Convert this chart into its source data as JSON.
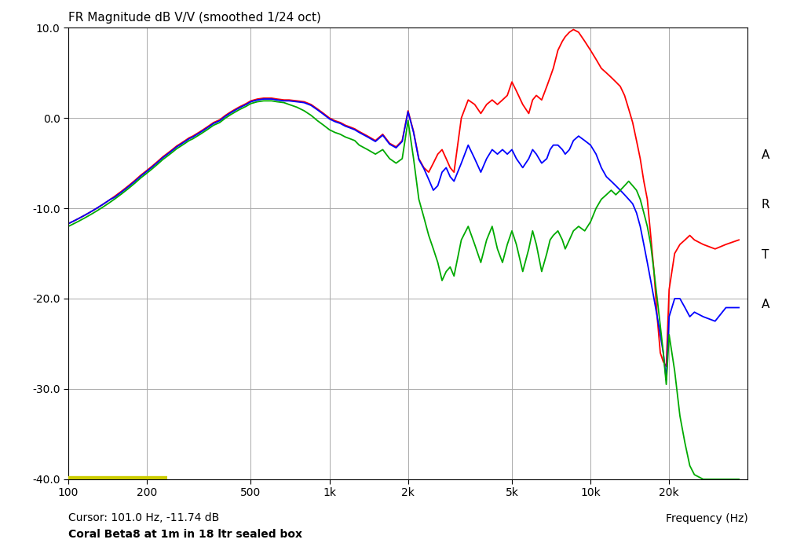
{
  "title": "FR Magnitude dB V/V (smoothed 1/24 oct)",
  "xlabel": "Frequency (Hz)",
  "xlim": [
    100,
    40000
  ],
  "ylim": [
    -40,
    10
  ],
  "yticks": [
    10.0,
    0.0,
    -10.0,
    -20.0,
    -30.0,
    -40.0
  ],
  "cursor_text": "Cursor: 101.0 Hz, -11.74 dB",
  "label_text": "Coral Beta8 at 1m in 18 ltr sealed box",
  "arta_text": "A\nR\nT\nA",
  "bg_color": "#ffffff",
  "plot_bg_color": "#ffffff",
  "grid_color": "#aaaaaa",
  "line_colors": [
    "#ff0000",
    "#0000ff",
    "#00aa00"
  ],
  "line_width": 1.3,
  "bottom_bar_color": "#cccc00",
  "freq_points": [
    100,
    105,
    110,
    115,
    120,
    125,
    130,
    135,
    140,
    145,
    150,
    160,
    170,
    180,
    190,
    200,
    210,
    220,
    230,
    240,
    250,
    260,
    270,
    280,
    290,
    300,
    320,
    340,
    360,
    380,
    400,
    420,
    450,
    480,
    500,
    530,
    560,
    600,
    630,
    670,
    700,
    750,
    800,
    850,
    900,
    950,
    1000,
    1050,
    1100,
    1150,
    1200,
    1250,
    1300,
    1400,
    1500,
    1600,
    1700,
    1800,
    1900,
    2000,
    2100,
    2200,
    2300,
    2400,
    2500,
    2600,
    2700,
    2800,
    2900,
    3000,
    3200,
    3400,
    3600,
    3800,
    4000,
    4200,
    4400,
    4600,
    4800,
    5000,
    5200,
    5500,
    5800,
    6000,
    6200,
    6500,
    6800,
    7000,
    7200,
    7500,
    7800,
    8000,
    8300,
    8600,
    9000,
    9500,
    10000,
    10500,
    11000,
    11500,
    12000,
    12500,
    13000,
    13500,
    14000,
    14500,
    15000,
    15500,
    16000,
    16500,
    17000,
    17500,
    18000,
    18500,
    19000,
    19500,
    20000,
    21000,
    22000,
    23000,
    24000,
    25000,
    27000,
    30000,
    33000,
    37000
  ],
  "red_line": [
    -11.7,
    -11.4,
    -11.1,
    -10.8,
    -10.5,
    -10.2,
    -9.9,
    -9.6,
    -9.3,
    -9.0,
    -8.7,
    -8.1,
    -7.5,
    -6.9,
    -6.3,
    -5.8,
    -5.3,
    -4.8,
    -4.3,
    -3.9,
    -3.5,
    -3.1,
    -2.8,
    -2.5,
    -2.2,
    -2.0,
    -1.5,
    -1.0,
    -0.5,
    -0.2,
    0.3,
    0.7,
    1.2,
    1.6,
    1.9,
    2.1,
    2.2,
    2.2,
    2.1,
    2.0,
    2.0,
    1.9,
    1.8,
    1.5,
    1.0,
    0.5,
    0.0,
    -0.3,
    -0.5,
    -0.8,
    -1.0,
    -1.2,
    -1.5,
    -2.0,
    -2.5,
    -1.8,
    -2.8,
    -3.2,
    -2.5,
    0.8,
    -1.5,
    -4.5,
    -5.5,
    -6.0,
    -5.0,
    -4.0,
    -3.5,
    -4.5,
    -5.5,
    -6.0,
    0.0,
    2.0,
    1.5,
    0.5,
    1.5,
    2.0,
    1.5,
    2.0,
    2.5,
    4.0,
    3.0,
    1.5,
    0.5,
    2.0,
    2.5,
    2.0,
    3.5,
    4.5,
    5.5,
    7.5,
    8.5,
    9.0,
    9.5,
    9.8,
    9.5,
    8.5,
    7.5,
    6.5,
    5.5,
    5.0,
    4.5,
    4.0,
    3.5,
    2.5,
    1.0,
    -0.5,
    -2.5,
    -4.5,
    -7.0,
    -9.0,
    -13.0,
    -17.0,
    -22.0,
    -26.0,
    -27.0,
    -27.5,
    -19.0,
    -15.0,
    -14.0,
    -13.5,
    -13.0,
    -13.5,
    -14.0,
    -14.5,
    -14.0,
    -13.5
  ],
  "blue_line": [
    -11.7,
    -11.4,
    -11.1,
    -10.8,
    -10.5,
    -10.2,
    -9.9,
    -9.6,
    -9.3,
    -9.0,
    -8.8,
    -8.2,
    -7.6,
    -7.0,
    -6.4,
    -5.9,
    -5.4,
    -4.9,
    -4.4,
    -4.0,
    -3.6,
    -3.2,
    -2.9,
    -2.6,
    -2.3,
    -2.1,
    -1.6,
    -1.1,
    -0.6,
    -0.3,
    0.2,
    0.6,
    1.1,
    1.5,
    1.8,
    2.0,
    2.1,
    2.1,
    2.0,
    1.9,
    1.9,
    1.8,
    1.7,
    1.4,
    0.9,
    0.4,
    -0.1,
    -0.4,
    -0.6,
    -0.9,
    -1.1,
    -1.3,
    -1.6,
    -2.1,
    -2.6,
    -1.9,
    -2.9,
    -3.3,
    -2.6,
    0.7,
    -1.6,
    -4.6,
    -5.6,
    -6.8,
    -8.0,
    -7.5,
    -6.0,
    -5.5,
    -6.5,
    -7.0,
    -5.0,
    -3.0,
    -4.5,
    -6.0,
    -4.5,
    -3.5,
    -4.0,
    -3.5,
    -4.0,
    -3.5,
    -4.5,
    -5.5,
    -4.5,
    -3.5,
    -4.0,
    -5.0,
    -4.5,
    -3.5,
    -3.0,
    -3.0,
    -3.5,
    -4.0,
    -3.5,
    -2.5,
    -2.0,
    -2.5,
    -3.0,
    -4.0,
    -5.5,
    -6.5,
    -7.0,
    -7.5,
    -8.0,
    -8.5,
    -9.0,
    -9.5,
    -10.5,
    -12.0,
    -14.0,
    -16.0,
    -18.0,
    -20.0,
    -22.0,
    -24.0,
    -26.0,
    -29.0,
    -22.0,
    -20.0,
    -20.0,
    -21.0,
    -22.0,
    -21.5,
    -22.0,
    -22.5,
    -21.0,
    -21.0
  ],
  "green_line": [
    -12.0,
    -11.7,
    -11.4,
    -11.1,
    -10.8,
    -10.5,
    -10.2,
    -9.9,
    -9.6,
    -9.3,
    -9.0,
    -8.4,
    -7.8,
    -7.2,
    -6.6,
    -6.1,
    -5.6,
    -5.1,
    -4.6,
    -4.2,
    -3.8,
    -3.4,
    -3.1,
    -2.8,
    -2.5,
    -2.3,
    -1.8,
    -1.3,
    -0.8,
    -0.5,
    0.0,
    0.4,
    0.9,
    1.3,
    1.6,
    1.8,
    1.9,
    1.9,
    1.8,
    1.7,
    1.5,
    1.2,
    0.8,
    0.3,
    -0.3,
    -0.8,
    -1.3,
    -1.6,
    -1.8,
    -2.1,
    -2.3,
    -2.5,
    -3.0,
    -3.5,
    -4.0,
    -3.5,
    -4.5,
    -5.0,
    -4.5,
    -0.3,
    -4.5,
    -9.0,
    -11.0,
    -13.0,
    -14.5,
    -16.0,
    -18.0,
    -17.0,
    -16.5,
    -17.5,
    -13.5,
    -12.0,
    -14.0,
    -16.0,
    -13.5,
    -12.0,
    -14.5,
    -16.0,
    -14.0,
    -12.5,
    -14.0,
    -17.0,
    -14.5,
    -12.5,
    -14.0,
    -17.0,
    -15.0,
    -13.5,
    -13.0,
    -12.5,
    -13.5,
    -14.5,
    -13.5,
    -12.5,
    -12.0,
    -12.5,
    -11.5,
    -10.0,
    -9.0,
    -8.5,
    -8.0,
    -8.5,
    -8.0,
    -7.5,
    -7.0,
    -7.5,
    -8.0,
    -9.0,
    -10.5,
    -12.0,
    -14.0,
    -17.0,
    -20.0,
    -23.0,
    -26.0,
    -29.5,
    -24.0,
    -28.0,
    -33.0,
    -36.0,
    -38.5,
    -39.5,
    -40.0,
    -40.0,
    -40.0,
    -40.0
  ]
}
